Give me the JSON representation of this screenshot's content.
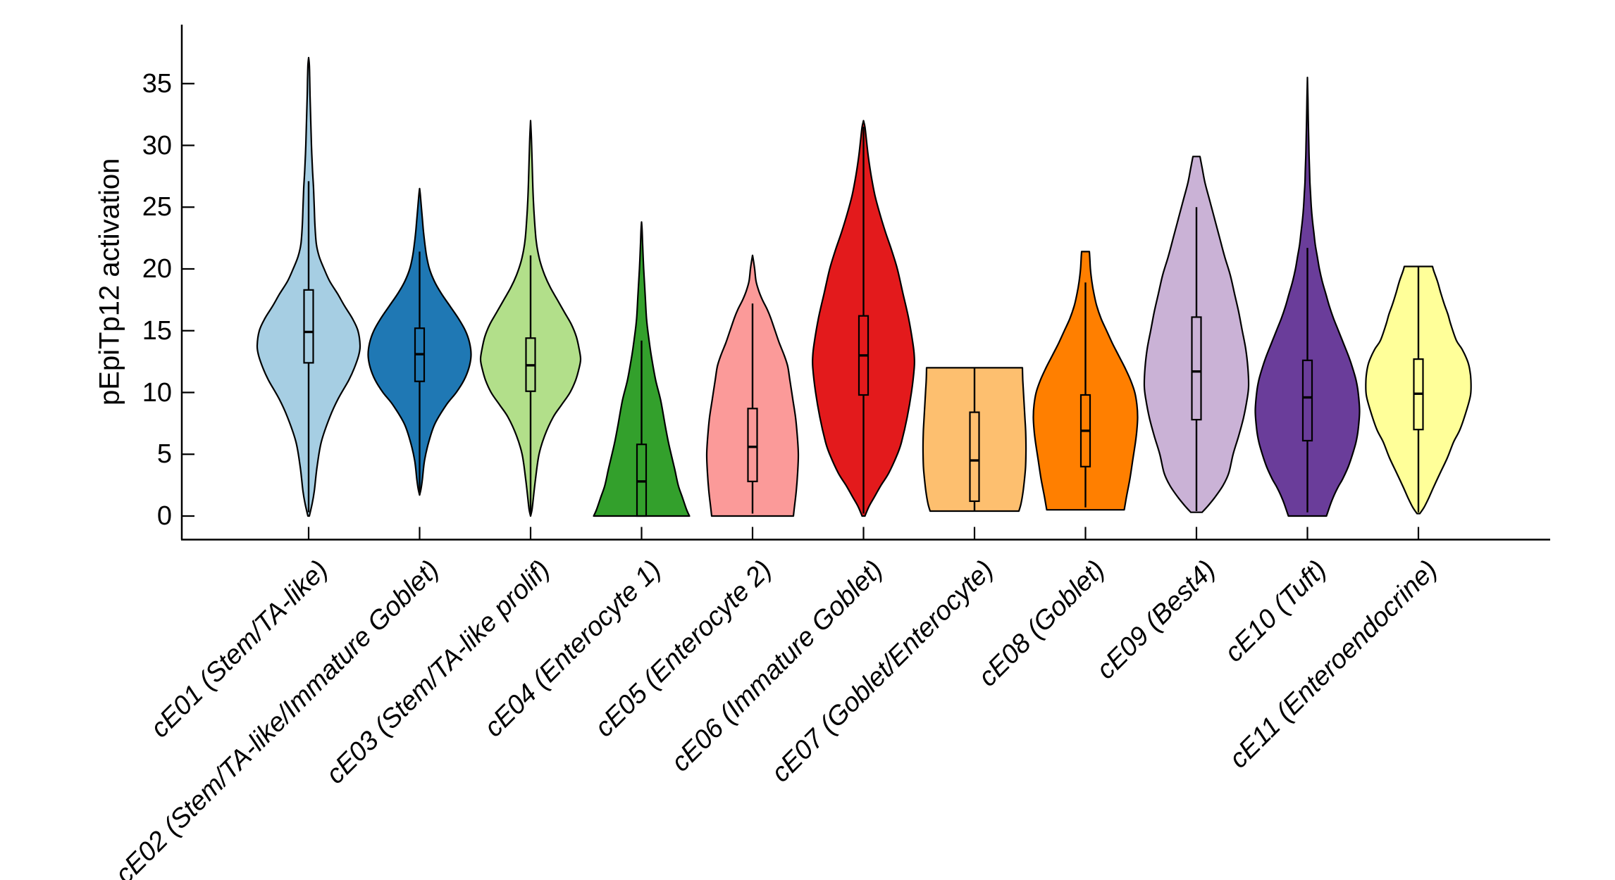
{
  "chart_data": {
    "type": "violin",
    "title": "",
    "ylabel": "pEpiTp12 activation",
    "xlabel": "",
    "ylim": [
      0,
      37.5
    ],
    "yticks": [
      0,
      5,
      10,
      15,
      20,
      25,
      30,
      35
    ],
    "grid": false,
    "legend": "none",
    "categories": [
      "cE01 (Stem/TA-like)",
      "cE02 (Stem/TA-like/Immature Goblet)",
      "cE03 (Stem/TA-like prolif)",
      "cE04 (Enterocyte 1)",
      "cE05 (Enterocyte 2)",
      "cE06 (Immature Goblet)",
      "cE07 (Goblet/Enterocyte)",
      "cE08 (Goblet)",
      "cE09 (Best4)",
      "cE10 (Tuft)",
      "cE11 (Enteroendocrine)"
    ],
    "series": [
      {
        "label": "cE01 (Stem/TA-like)",
        "color": "#a6cee3",
        "min": 0,
        "max": 37.1,
        "q1": 12.4,
        "median": 14.9,
        "q3": 18.3,
        "whisker_low": 0.3,
        "whisker_high": 27.1,
        "profile": [
          [
            0,
            1
          ],
          [
            1,
            5
          ],
          [
            2,
            8
          ],
          [
            4,
            12
          ],
          [
            6,
            18
          ],
          [
            8,
            30
          ],
          [
            9.5,
            42
          ],
          [
            11,
            57
          ],
          [
            12,
            65
          ],
          [
            13,
            71
          ],
          [
            13.8,
            73
          ],
          [
            15,
            70
          ],
          [
            16,
            62
          ],
          [
            17,
            51
          ],
          [
            18,
            41
          ],
          [
            19,
            30
          ],
          [
            20,
            22
          ],
          [
            21,
            15
          ],
          [
            22,
            11
          ],
          [
            23.5,
            9
          ],
          [
            25,
            8
          ],
          [
            26.5,
            7
          ],
          [
            28,
            5.5
          ],
          [
            30,
            4
          ],
          [
            32,
            3
          ],
          [
            34,
            2
          ],
          [
            35.5,
            1.5
          ],
          [
            36.5,
            1
          ],
          [
            37.1,
            0
          ]
        ]
      },
      {
        "label": "cE02 (Stem/TA-like/Immature Goblet)",
        "color": "#1f78b4",
        "min": 1.7,
        "max": 26.5,
        "q1": 10.9,
        "median": 13.1,
        "q3": 15.2,
        "whisker_low": 2.0,
        "whisker_high": 21.4,
        "profile": [
          [
            1.7,
            0
          ],
          [
            2.2,
            2
          ],
          [
            3,
            4
          ],
          [
            4.5,
            7
          ],
          [
            6,
            13
          ],
          [
            7.5,
            22
          ],
          [
            9,
            38
          ],
          [
            10,
            52
          ],
          [
            11,
            63
          ],
          [
            12,
            70
          ],
          [
            13,
            73
          ],
          [
            14,
            71
          ],
          [
            15,
            65
          ],
          [
            16,
            55
          ],
          [
            17,
            43
          ],
          [
            18,
            31
          ],
          [
            19,
            21
          ],
          [
            20,
            14
          ],
          [
            21,
            10
          ],
          [
            22,
            7.5
          ],
          [
            23,
            5.5
          ],
          [
            24,
            4
          ],
          [
            25,
            2.5
          ],
          [
            26,
            1
          ],
          [
            26.5,
            0
          ]
        ]
      },
      {
        "label": "cE03 (Stem/TA-like prolif)",
        "color": "#b2df8a",
        "min": 0,
        "max": 32,
        "q1": 10.1,
        "median": 12.2,
        "q3": 14.4,
        "whisker_low": 0.3,
        "whisker_high": 21.1,
        "profile": [
          [
            0,
            0
          ],
          [
            0.5,
            2
          ],
          [
            1.5,
            4
          ],
          [
            3,
            7
          ],
          [
            5,
            12
          ],
          [
            6.5,
            20
          ],
          [
            8,
            32
          ],
          [
            9,
            44
          ],
          [
            10,
            56
          ],
          [
            11,
            64
          ],
          [
            12,
            69
          ],
          [
            12.7,
            71
          ],
          [
            13.5,
            69
          ],
          [
            14.5,
            65
          ],
          [
            15.5,
            58
          ],
          [
            16.5,
            48
          ],
          [
            17.5,
            38
          ],
          [
            18.5,
            28
          ],
          [
            19.5,
            20
          ],
          [
            20.5,
            14
          ],
          [
            21.5,
            10
          ],
          [
            22.5,
            7.5
          ],
          [
            24,
            5.5
          ],
          [
            25.5,
            4
          ],
          [
            27,
            3
          ],
          [
            29,
            2
          ],
          [
            30.5,
            1.2
          ],
          [
            32,
            0
          ]
        ]
      },
      {
        "label": "cE04 (Enterocyte 1)",
        "color": "#33a02c",
        "min": 0,
        "max": 23.8,
        "q1": 0,
        "median": 2.8,
        "q3": 5.8,
        "whisker_low": 0,
        "whisker_high": 14.2,
        "profile": [
          [
            0,
            68
          ],
          [
            0.5,
            64
          ],
          [
            1.5,
            58
          ],
          [
            2.5,
            52
          ],
          [
            3.8,
            47
          ],
          [
            5,
            42
          ],
          [
            6,
            38
          ],
          [
            7.5,
            33
          ],
          [
            9.4,
            27
          ],
          [
            11,
            20
          ],
          [
            12.9,
            14
          ],
          [
            14.5,
            10
          ],
          [
            16,
            7
          ],
          [
            18,
            5
          ],
          [
            20,
            3
          ],
          [
            22,
            1.5
          ],
          [
            23.2,
            0.7
          ],
          [
            23.8,
            0
          ]
        ]
      },
      {
        "label": "cE05 (Enterocyte 2)",
        "color": "#fb9a99",
        "min": 0,
        "max": 21.1,
        "q1": 2.8,
        "median": 5.6,
        "q3": 8.7,
        "whisker_low": 0.2,
        "whisker_high": 17.2,
        "profile": [
          [
            0,
            58
          ],
          [
            1,
            60
          ],
          [
            2,
            62
          ],
          [
            3.5,
            64
          ],
          [
            5,
            65
          ],
          [
            6.5,
            63.5
          ],
          [
            8,
            61
          ],
          [
            9.5,
            57
          ],
          [
            11,
            53
          ],
          [
            12.1,
            50
          ],
          [
            13,
            45
          ],
          [
            14,
            38
          ],
          [
            15,
            32
          ],
          [
            16,
            26
          ],
          [
            16.7,
            21
          ],
          [
            17.5,
            14
          ],
          [
            18.2,
            9
          ],
          [
            19,
            5
          ],
          [
            20,
            3
          ],
          [
            20.6,
            1.5
          ],
          [
            21.1,
            0
          ]
        ]
      },
      {
        "label": "cE06 (Immature Goblet)",
        "color": "#e31a1c",
        "min": 0,
        "max": 32,
        "q1": 9.8,
        "median": 13.0,
        "q3": 16.2,
        "whisker_low": 0.2,
        "whisker_high": 31.5,
        "profile": [
          [
            0,
            2
          ],
          [
            0.8,
            8
          ],
          [
            1.5,
            15
          ],
          [
            2.5,
            25
          ],
          [
            3.5,
            36
          ],
          [
            5,
            48
          ],
          [
            6,
            54
          ],
          [
            8,
            62
          ],
          [
            10,
            68
          ],
          [
            12,
            72
          ],
          [
            13,
            72
          ],
          [
            14,
            70
          ],
          [
            16,
            64
          ],
          [
            18,
            56
          ],
          [
            20,
            48
          ],
          [
            21.5,
            40
          ],
          [
            23,
            31
          ],
          [
            24.5,
            23
          ],
          [
            26,
            16
          ],
          [
            27.5,
            11
          ],
          [
            29,
            7
          ],
          [
            30.5,
            4
          ],
          [
            31.5,
            2
          ],
          [
            32,
            0
          ]
        ]
      },
      {
        "label": "cE07 (Goblet/Enterocyte)",
        "color": "#fdbf6f",
        "min": 0.4,
        "max": 12.0,
        "q1": 1.2,
        "median": 4.5,
        "q3": 8.4,
        "whisker_low": 0.4,
        "whisker_high": 12.0,
        "profile": [
          [
            0.4,
            63
          ],
          [
            1,
            66
          ],
          [
            2,
            69
          ],
          [
            3,
            71
          ],
          [
            4,
            72.5
          ],
          [
            5,
            73
          ],
          [
            6,
            73
          ],
          [
            7,
            72.5
          ],
          [
            8,
            71.5
          ],
          [
            9,
            70.5
          ],
          [
            10,
            69.5
          ],
          [
            11,
            68.5
          ],
          [
            12,
            68
          ]
        ]
      },
      {
        "label": "cE08 (Goblet)",
        "color": "#ff7f00",
        "min": 0.5,
        "max": 21.4,
        "q1": 4.0,
        "median": 6.9,
        "q3": 9.8,
        "whisker_low": 0.7,
        "whisker_high": 18.9,
        "profile": [
          [
            0.5,
            55
          ],
          [
            1.5,
            58
          ],
          [
            3,
            63
          ],
          [
            4.5,
            67
          ],
          [
            6,
            71
          ],
          [
            7,
            73
          ],
          [
            8,
            74
          ],
          [
            9,
            73
          ],
          [
            10,
            70
          ],
          [
            11,
            64
          ],
          [
            12,
            56
          ],
          [
            13,
            47
          ],
          [
            14,
            38
          ],
          [
            15,
            30
          ],
          [
            16,
            22
          ],
          [
            17,
            16
          ],
          [
            18,
            12
          ],
          [
            19,
            9
          ],
          [
            20,
            7
          ],
          [
            21,
            6
          ],
          [
            21.4,
            5.5
          ]
        ]
      },
      {
        "label": "cE09 (Best4)",
        "color": "#cab2d6",
        "min": 0.3,
        "max": 29.1,
        "q1": 7.8,
        "median": 11.7,
        "q3": 16.1,
        "whisker_low": 0.4,
        "whisker_high": 25.0,
        "profile": [
          [
            0.3,
            8
          ],
          [
            0.8,
            16
          ],
          [
            1.5,
            26
          ],
          [
            2.5,
            38
          ],
          [
            3.5,
            46
          ],
          [
            5,
            52
          ],
          [
            6.5,
            60
          ],
          [
            8,
            67
          ],
          [
            9.5,
            72
          ],
          [
            10.5,
            74
          ],
          [
            12,
            73
          ],
          [
            13.5,
            70
          ],
          [
            15,
            65
          ],
          [
            16.5,
            60
          ],
          [
            18,
            54
          ],
          [
            19.5,
            48
          ],
          [
            21,
            40
          ],
          [
            22.5,
            33
          ],
          [
            24,
            26
          ],
          [
            25.5,
            19
          ],
          [
            27,
            12
          ],
          [
            28.2,
            8
          ],
          [
            29.1,
            5
          ]
        ]
      },
      {
        "label": "cE10 (Tuft)",
        "color": "#6a3d9a",
        "min": 0,
        "max": 35.5,
        "q1": 6.1,
        "median": 9.6,
        "q3": 12.6,
        "whisker_low": 0.3,
        "whisker_high": 21.7,
        "profile": [
          [
            0,
            27
          ],
          [
            0.5,
            30
          ],
          [
            1,
            33
          ],
          [
            1.7,
            38
          ],
          [
            2.4,
            44
          ],
          [
            3,
            50
          ],
          [
            4,
            58
          ],
          [
            5,
            64
          ],
          [
            6,
            69
          ],
          [
            7,
            72
          ],
          [
            8.5,
            74
          ],
          [
            10,
            72
          ],
          [
            11,
            69
          ],
          [
            12,
            64
          ],
          [
            13,
            58
          ],
          [
            14,
            51
          ],
          [
            15,
            44
          ],
          [
            16,
            37
          ],
          [
            17,
            31
          ],
          [
            18,
            26
          ],
          [
            19,
            21
          ],
          [
            20,
            17
          ],
          [
            21,
            14
          ],
          [
            22,
            11
          ],
          [
            23,
            9
          ],
          [
            24,
            7
          ],
          [
            25,
            5.5
          ],
          [
            26,
            4.5
          ],
          [
            27,
            3.5
          ],
          [
            28,
            3
          ],
          [
            29,
            2.4
          ],
          [
            30,
            2
          ],
          [
            31,
            1.6
          ],
          [
            32,
            1.2
          ],
          [
            33,
            0.9
          ],
          [
            34,
            0.6
          ],
          [
            35.5,
            0
          ]
        ]
      },
      {
        "label": "cE11 (Enteroendocrine)",
        "color": "#ffff99",
        "min": 0.2,
        "max": 20.2,
        "q1": 7.0,
        "median": 9.9,
        "q3": 12.7,
        "whisker_low": 0.3,
        "whisker_high": 20.2,
        "profile": [
          [
            0.2,
            2
          ],
          [
            0.7,
            8
          ],
          [
            1.5,
            15
          ],
          [
            2.4,
            22
          ],
          [
            3.5,
            31
          ],
          [
            4.7,
            41
          ],
          [
            6,
            50
          ],
          [
            7,
            59
          ],
          [
            8.5,
            68
          ],
          [
            9.8,
            74
          ],
          [
            11,
            74.5
          ],
          [
            11.8,
            73
          ],
          [
            12.5,
            70
          ],
          [
            13.5,
            62
          ],
          [
            14.2,
            54
          ],
          [
            15.5,
            46
          ],
          [
            16.3,
            42
          ],
          [
            17.1,
            37
          ],
          [
            18,
            32
          ],
          [
            19,
            27
          ],
          [
            19.8,
            22
          ],
          [
            20.2,
            20
          ]
        ]
      }
    ],
    "style": {
      "outline_color": "#000000",
      "box_fill": "none",
      "background": "#ffffff",
      "axis_color": "#000000",
      "tick_direction": "in"
    }
  }
}
